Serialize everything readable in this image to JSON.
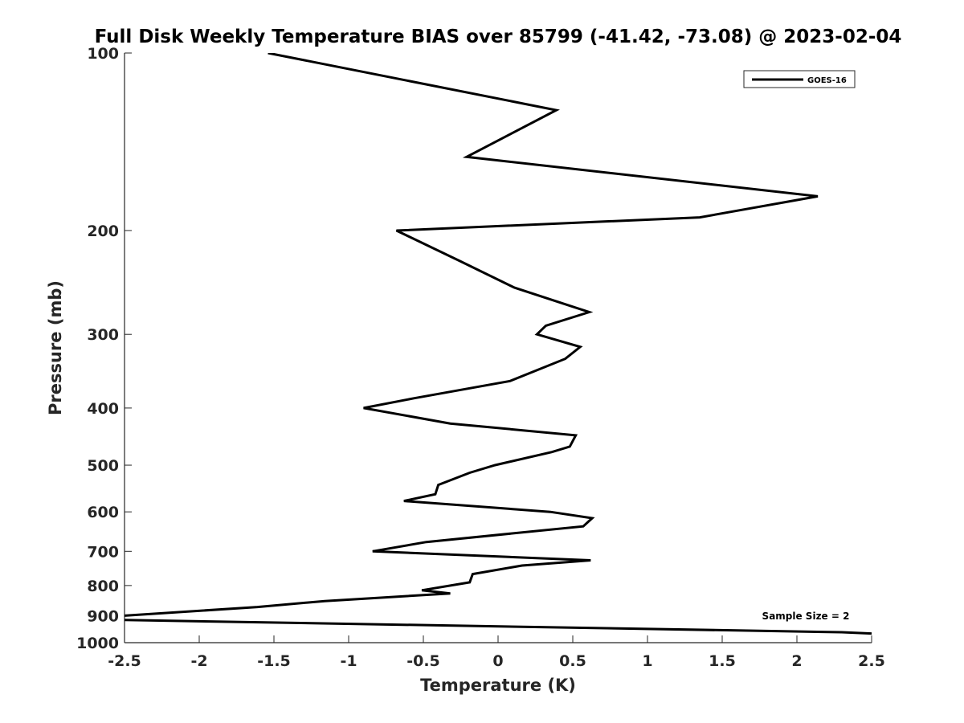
{
  "chart_data": {
    "type": "line",
    "title": "Full Disk Weekly Temperature BIAS over 85799 (-41.42, -73.08) @ 2023-02-04",
    "xlabel": "Temperature (K)",
    "ylabel": "Pressure (mb)",
    "xlim": [
      -2.5,
      2.5
    ],
    "ylim": [
      100,
      1000
    ],
    "yscale": "log",
    "yreversed": true,
    "xticks": [
      -2.5,
      -2,
      -1.5,
      -1,
      -0.5,
      0,
      0.5,
      1,
      1.5,
      2,
      2.5
    ],
    "xtick_labels": [
      "-2.5",
      "-2",
      "-1.5",
      "-1",
      "-0.5",
      "0",
      "0.5",
      "1",
      "1.5",
      "2",
      "2.5"
    ],
    "yticks": [
      100,
      200,
      300,
      400,
      500,
      600,
      700,
      800,
      900,
      1000
    ],
    "ytick_labels": [
      "100",
      "200",
      "300",
      "400",
      "500",
      "600",
      "700",
      "800",
      "900",
      "1000"
    ],
    "grid": false,
    "legend_position": "top-right",
    "line_color": "#000000",
    "series": [
      {
        "name": "GOES-16",
        "points": [
          {
            "t": -1.54,
            "p": 100
          },
          {
            "t": 0.39,
            "p": 125
          },
          {
            "t": -0.21,
            "p": 150
          },
          {
            "t": 2.14,
            "p": 175
          },
          {
            "t": 1.35,
            "p": 190
          },
          {
            "t": -0.68,
            "p": 200
          },
          {
            "t": -0.26,
            "p": 225
          },
          {
            "t": 0.11,
            "p": 250
          },
          {
            "t": 0.61,
            "p": 275
          },
          {
            "t": 0.32,
            "p": 290
          },
          {
            "t": 0.26,
            "p": 300
          },
          {
            "t": 0.55,
            "p": 315
          },
          {
            "t": 0.45,
            "p": 330
          },
          {
            "t": 0.08,
            "p": 360
          },
          {
            "t": -0.56,
            "p": 385
          },
          {
            "t": -0.9,
            "p": 400
          },
          {
            "t": -0.32,
            "p": 425
          },
          {
            "t": 0.52,
            "p": 445
          },
          {
            "t": 0.48,
            "p": 465
          },
          {
            "t": 0.36,
            "p": 475
          },
          {
            "t": -0.02,
            "p": 500
          },
          {
            "t": -0.19,
            "p": 515
          },
          {
            "t": -0.4,
            "p": 540
          },
          {
            "t": -0.42,
            "p": 560
          },
          {
            "t": -0.63,
            "p": 575
          },
          {
            "t": 0.35,
            "p": 600
          },
          {
            "t": 0.63,
            "p": 615
          },
          {
            "t": 0.57,
            "p": 635
          },
          {
            "t": -0.48,
            "p": 675
          },
          {
            "t": -0.84,
            "p": 700
          },
          {
            "t": 0.62,
            "p": 725
          },
          {
            "t": 0.16,
            "p": 740
          },
          {
            "t": -0.17,
            "p": 765
          },
          {
            "t": -0.19,
            "p": 790
          },
          {
            "t": -0.51,
            "p": 815
          },
          {
            "t": -0.32,
            "p": 825
          },
          {
            "t": -1.16,
            "p": 850
          },
          {
            "t": -1.61,
            "p": 870
          },
          {
            "t": -2.5,
            "p": 900
          },
          {
            "t": -2.53,
            "p": 915
          },
          {
            "t": 2.3,
            "p": 960
          },
          {
            "t": 2.5,
            "p": 965
          }
        ]
      }
    ],
    "annotations": [
      {
        "text": "Sample Size = 2"
      }
    ]
  }
}
